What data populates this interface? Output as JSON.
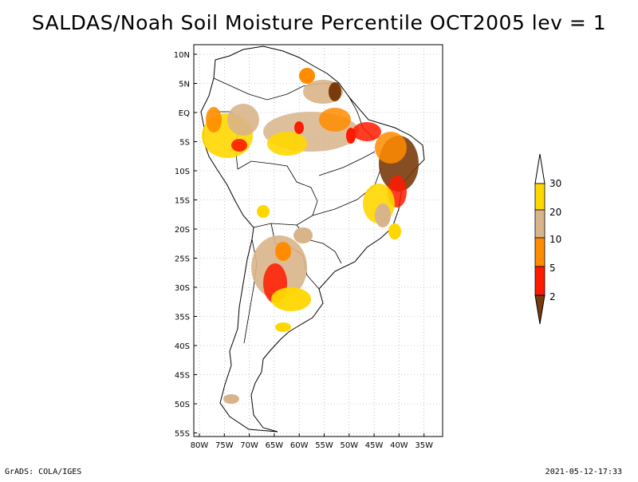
{
  "title": "SALDAS/Noah Soil Moisture Percentile OCT2005 lev = 1",
  "map": {
    "lat_labels": [
      "10N",
      "5N",
      "EQ",
      "5S",
      "10S",
      "15S",
      "20S",
      "25S",
      "30S",
      "35S",
      "40S",
      "45S",
      "50S",
      "55S"
    ],
    "lon_labels": [
      "80W",
      "75W",
      "70W",
      "65W",
      "60W",
      "55W",
      "50W",
      "45W",
      "40W",
      "35W"
    ],
    "grid": true,
    "region": "South America"
  },
  "legend": {
    "labels": [
      "2",
      "5",
      "10",
      "20",
      "30"
    ],
    "colors": [
      "#7a3b0c",
      "#ff1a00",
      "#ff8c00",
      "#d8b48a",
      "#ffd700",
      "#ffffff"
    ]
  },
  "footer": {
    "left": "GrADS: COLA/IGES",
    "right": "2021-05-12-17:33"
  }
}
